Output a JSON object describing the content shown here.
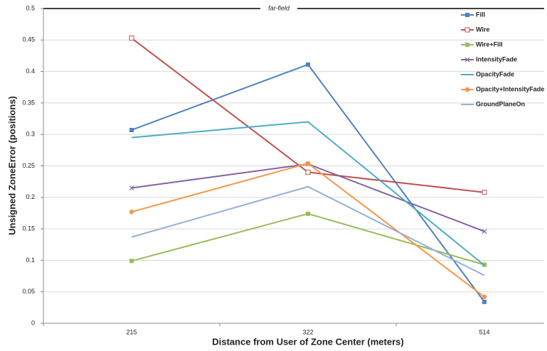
{
  "chart_data": {
    "type": "line",
    "annotation": "far-field",
    "x_label": "Distance from User of Zone Center (meters)",
    "y_label": "Unsigned ZoneError (positions)",
    "categories": [
      "215",
      "322",
      "514"
    ],
    "ylim": [
      0,
      0.5
    ],
    "yticks": [
      0,
      0.05,
      0.1,
      0.15,
      0.2,
      0.25,
      0.3,
      0.35,
      0.4,
      0.45,
      0.5
    ],
    "grid": true,
    "legend": "top-right",
    "series": [
      {
        "name": "Fill",
        "color": "#4f81bd",
        "marker": "square",
        "values": [
          0.307,
          0.411,
          0.034
        ]
      },
      {
        "name": "Wire",
        "color": "#c0504d",
        "marker": "hollow-square",
        "values": [
          0.453,
          0.24,
          0.208
        ]
      },
      {
        "name": "Wire+Fill",
        "color": "#9bbb59",
        "marker": "square",
        "values": [
          0.099,
          0.174,
          0.093
        ]
      },
      {
        "name": "IntensityFade",
        "color": "#8064a2",
        "marker": "x",
        "values": [
          0.215,
          0.253,
          0.146
        ]
      },
      {
        "name": "OpacityFade",
        "color": "#4bacc6",
        "marker": "none",
        "values": [
          0.295,
          0.32,
          0.092
        ]
      },
      {
        "name": "Opacity+IntensityFade",
        "color": "#f79646",
        "marker": "circle",
        "values": [
          0.177,
          0.254,
          0.042
        ]
      },
      {
        "name": "GroundPlaneOn",
        "color": "#95b0d9",
        "marker": "none",
        "values": [
          0.137,
          0.217,
          0.076
        ]
      }
    ]
  }
}
